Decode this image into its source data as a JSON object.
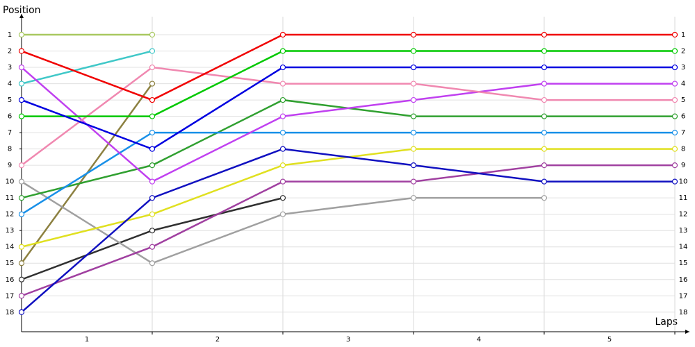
{
  "chart_data": {
    "type": "line",
    "title": "Position",
    "x_label": "Laps",
    "categories": [
      "1",
      "2",
      "3",
      "4",
      "5"
    ],
    "x": [
      0,
      1,
      2,
      3,
      4,
      5
    ],
    "xlim": [
      0,
      5
    ],
    "ylim": [
      19.2,
      0
    ],
    "yticks": [
      1,
      2,
      3,
      4,
      5,
      6,
      7,
      8,
      9,
      10,
      11,
      12,
      13,
      14,
      15,
      16,
      17,
      18
    ],
    "grid": true,
    "series": [
      {
        "color": "#a8c860",
        "values": [
          1,
          1,
          null,
          null,
          null,
          null
        ]
      },
      {
        "color": "#40c8c8",
        "values": [
          4,
          2,
          null,
          null,
          null,
          null
        ]
      },
      {
        "color": "#8c8040",
        "values": [
          15,
          4,
          null,
          null,
          null,
          null
        ]
      },
      {
        "color": "#303030",
        "values": [
          16,
          13,
          11,
          null,
          null,
          null
        ]
      },
      {
        "color": "#a0a0a0",
        "values": [
          10,
          15,
          12,
          11,
          11,
          null
        ]
      },
      {
        "color": "#a040a0",
        "values": [
          17,
          14,
          10,
          10,
          9,
          9
        ]
      },
      {
        "color": "#e0e020",
        "values": [
          14,
          12,
          9,
          8,
          8,
          8
        ]
      },
      {
        "color": "#1010c0",
        "values": [
          18,
          11,
          8,
          9,
          10,
          10
        ]
      },
      {
        "color": "#30a030",
        "values": [
          11,
          9,
          5,
          6,
          6,
          6
        ]
      },
      {
        "color": "#1890e8",
        "values": [
          12,
          7,
          7,
          7,
          7,
          7
        ]
      },
      {
        "color": "#c040f0",
        "values": [
          3,
          10,
          6,
          5,
          4,
          4
        ]
      },
      {
        "color": "#f088b0",
        "values": [
          9,
          3,
          4,
          4,
          5,
          5
        ]
      },
      {
        "color": "#00c800",
        "values": [
          6,
          6,
          2,
          2,
          2,
          2
        ]
      },
      {
        "color": "#0000e0",
        "values": [
          5,
          8,
          3,
          3,
          3,
          3
        ]
      },
      {
        "color": "#f00000",
        "values": [
          2,
          5,
          1,
          1,
          1,
          1
        ]
      }
    ]
  }
}
